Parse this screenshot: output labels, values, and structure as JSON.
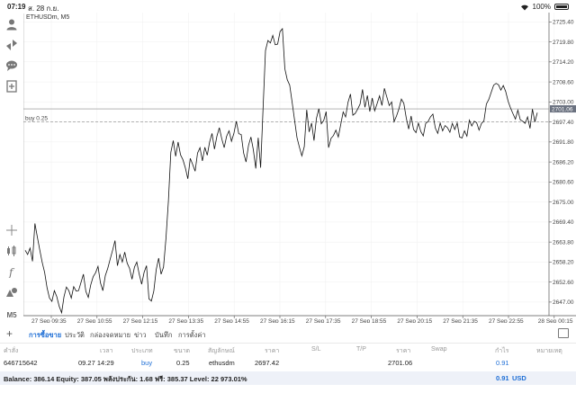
{
  "status": {
    "time": "07:19",
    "date": "ส. 28 ก.ย.",
    "battery": "100%"
  },
  "toolbar": {
    "items": [
      "user-icon",
      "trade-icon",
      "chat-icon",
      "add-object-icon",
      "crosshair-icon",
      "candles-icon",
      "function-icon",
      "objects-icon"
    ],
    "timeframe": "M5"
  },
  "chart": {
    "symbol": "ETHUSDm, M5",
    "order_label": "buy 0.25",
    "current_price_label": "2701.06",
    "colors": {
      "price_tag_bg": "#6b7280",
      "line": "#111111",
      "grid": "#efefef"
    }
  },
  "chart_data": {
    "type": "line",
    "ylim": [
      2643.2,
      2728.0
    ],
    "yticks": [
      "2725.40",
      "2719.80",
      "2714.20",
      "2708.60",
      "2703.00",
      "2697.40",
      "2691.80",
      "2686.20",
      "2680.60",
      "2675.00",
      "2669.40",
      "2663.80",
      "2658.20",
      "2652.60",
      "2647.00"
    ],
    "xticks": [
      "27 Sep 09:35",
      "27 Sep 10:55",
      "27 Sep 12:15",
      "27 Sep 13:35",
      "27 Sep 14:55",
      "27 Sep 16:15",
      "27 Sep 17:35",
      "27 Sep 18:55",
      "27 Sep 20:15",
      "27 Sep 21:35",
      "27 Sep 22:55",
      "28 Sep 00:15"
    ],
    "order_level": 2697.42,
    "current_price": 2701.06,
    "series": [
      {
        "values": [
          2661.5,
          2660.3,
          2662.1,
          2658.4,
          2669.0,
          2665.2,
          2661.6,
          2658.1,
          2655.3,
          2651.0,
          2648.1,
          2647.2,
          2650.2,
          2648.5,
          2645.8,
          2644.0,
          2648.5,
          2651.2,
          2650.2,
          2648.1,
          2651.3,
          2650.1,
          2650.2,
          2652.5,
          2654.8,
          2650.0,
          2648.3,
          2651.8,
          2654.1,
          2655.2,
          2657.0,
          2652.4,
          2650.2,
          2654.4,
          2656.4,
          2659.0,
          2661.5,
          2664.2,
          2657.2,
          2660.3,
          2658.2,
          2661.0,
          2657.9,
          2656.4,
          2653.4,
          2656.8,
          2658.2,
          2654.8,
          2652.0,
          2655.3,
          2657.2,
          2647.9,
          2647.3,
          2650.1,
          2656.1,
          2659.3,
          2654.8,
          2656.8,
          2664.8,
          2675.2,
          2688.9,
          2692.2,
          2687.8,
          2691.8,
          2688.2,
          2686.8,
          2684.5,
          2681.5,
          2687.2,
          2685.5,
          2683.6,
          2688.7,
          2690.2,
          2686.5,
          2690.3,
          2688.1,
          2691.8,
          2694.2,
          2689.8,
          2693.4,
          2695.8,
          2692.7,
          2690.2,
          2693.4,
          2694.9,
          2692.0,
          2694.2,
          2697.6,
          2694.1,
          2693.9,
          2688.7,
          2686.2,
          2690.8,
          2693.2,
          2689.6,
          2684.4,
          2693.0,
          2684.6,
          2701.2,
          2717.4,
          2720.2,
          2719.5,
          2721.6,
          2719.0,
          2719.2,
          2722.7,
          2723.5,
          2712.3,
          2709.2,
          2707.7,
          2702.9,
          2697.9,
          2693.0,
          2690.3,
          2687.9,
          2690.5,
          2700.8,
          2694.6,
          2697.1,
          2692.2,
          2698.4,
          2701.1,
          2696.9,
          2697.8,
          2700.3,
          2690.2,
          2692.8,
          2693.6,
          2695.1,
          2693.2,
          2696.7,
          2700.2,
          2698.8,
          2702.9,
          2705.2,
          2699.3,
          2699.8,
          2701.0,
          2702.4,
          2706.5,
          2701.5,
          2704.8,
          2700.3,
          2704.1,
          2700.5,
          2702.5,
          2704.7,
          2702.0,
          2706.8,
          2704.4,
          2702.0,
          2703.0,
          2697.5,
          2699.1,
          2701.1,
          2703.8,
          2702.6,
          2698.5,
          2695.4,
          2699.1,
          2695.3,
          2694.4,
          2697.1,
          2694.7,
          2693.5,
          2697.0,
          2697.5,
          2698.8,
          2699.6,
          2695.7,
          2694.2,
          2697.1,
          2694.9,
          2696.4,
          2695.8,
          2694.5,
          2697.0,
          2695.3,
          2697.1,
          2693.2,
          2692.9,
          2694.9,
          2693.4,
          2697.9,
          2696.3,
          2697.6,
          2697.2,
          2695.1,
          2697.0,
          2697.7,
          2702.4,
          2703.7,
          2705.7,
          2707.7,
          2708.2,
          2707.8,
          2706.3,
          2707.6,
          2705.9,
          2703.2,
          2701.3,
          2699.7,
          2698.2,
          2700.7,
          2698.0,
          2697.6,
          2697.0,
          2698.8,
          2695.6,
          2701.0,
          2697.4,
          2700.0
        ]
      }
    ]
  },
  "panel": {
    "tabs": [
      "การซื้อขาย",
      "ประวัติ",
      "กล่องจดหมาย",
      "ข่าว",
      "บันทึก",
      "การตั้งค่า"
    ],
    "headers": {
      "ticket": "คำสั่ง",
      "time": "เวลา",
      "type": "ประเภท",
      "volume": "ขนาด",
      "symbol": "สัญลักษณ์",
      "price": "ราคา",
      "sl": "S/L",
      "tp": "T/P",
      "price2": "ราคา",
      "swap": "Swap",
      "profit": "กำไร",
      "comment": "หมายเหตุ"
    },
    "row": {
      "ticket": "646715642",
      "time": "09.27 14:29",
      "type": "buy",
      "volume": "0.25",
      "symbol": "ethusdm",
      "price": "2697.42",
      "current": "2701.06",
      "profit": "0.91"
    },
    "balance_text": "Balance: 386.14 Equity: 387.05 พลังประกัน: 1.68 ฟรี: 385.37 Level: 22 973.01%",
    "balance_profit": "0.91",
    "currency": "USD"
  }
}
